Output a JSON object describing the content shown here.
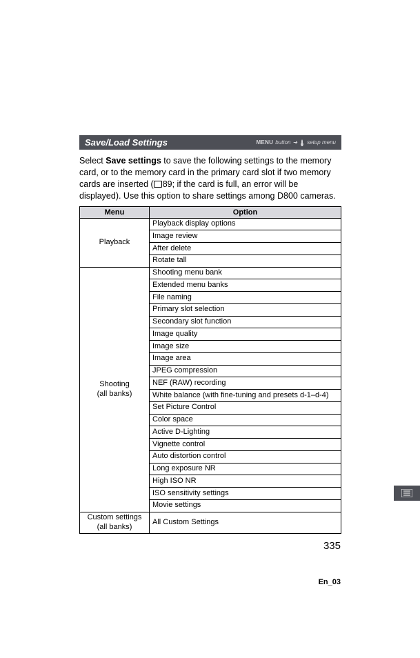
{
  "banner": {
    "title": "Save/Load Settings",
    "right_menu": "MENU",
    "right_button": "button",
    "right_arrow": "➜",
    "right_setup": "setup menu"
  },
  "intro": {
    "pre": "Select ",
    "bold": "Save settings",
    "post1": " to save the following settings to the memory card, or to the memory card in the primary card slot if two memory cards are inserted (",
    "ref_num": "89",
    "post2": "; if the card is full, an error will be displayed). Use this option to share settings among D800 cameras."
  },
  "table": {
    "headers": {
      "menu": "Menu",
      "option": "Option"
    },
    "groups": [
      {
        "menu": "Playback",
        "options": [
          "Playback display options",
          "Image review",
          "After delete",
          "Rotate tall"
        ]
      },
      {
        "menu": "Shooting\n(all banks)",
        "options": [
          "Shooting menu bank",
          "Extended menu banks",
          "File naming",
          "Primary slot selection",
          "Secondary slot function",
          "Image quality",
          "Image size",
          "Image area",
          "JPEG compression",
          "NEF (RAW) recording",
          "White balance (with fine-tuning and presets d-1–d-4)",
          "Set Picture Control",
          "Color space",
          "Active D-Lighting",
          "Vignette control",
          "Auto distortion control",
          "Long exposure NR",
          "High ISO NR",
          "ISO sensitivity settings",
          "Movie settings"
        ]
      },
      {
        "menu": "Custom settings\n(all banks)",
        "options": [
          "All Custom Settings"
        ]
      }
    ]
  },
  "page_number": "335",
  "footer_code": "En_03",
  "colors": {
    "banner_bg": "#4d4f56",
    "banner_fg": "#ffffff",
    "th_bg": "#d9d9de",
    "border": "#000000"
  }
}
